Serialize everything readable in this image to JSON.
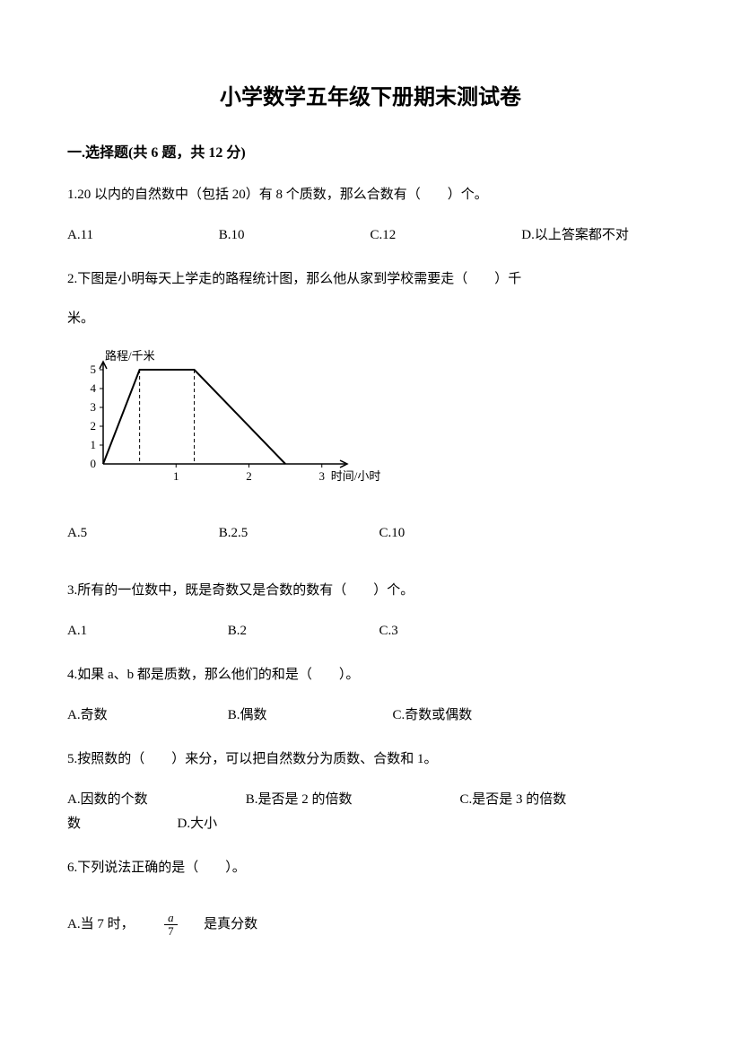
{
  "title": "小学数学五年级下册期末测试卷",
  "section1": {
    "header": "一.选择题(共 6 题，共 12 分)"
  },
  "q1": {
    "text": "1.20 以内的自然数中（包括 20）有 8 个质数，那么合数有（　　）个。",
    "optA": "A.11",
    "optB": "B.10",
    "optC": "C.12",
    "optD": "D.以上答案都不对"
  },
  "q2": {
    "text": "2.下图是小明每天上学走的路程统计图，那么他从家到学校需要走（　　）千",
    "suffix": "米。",
    "optA": "A.5",
    "optB": "B.2.5",
    "optC": "C.10"
  },
  "q3": {
    "text": "3.所有的一位数中，既是奇数又是合数的数有（　　）个。",
    "optA": "A.1",
    "optB": "B.2",
    "optC": "C.3"
  },
  "q4": {
    "text": "4.如果 a、b 都是质数，那么他们的和是（　　）。",
    "optA": "A.奇数",
    "optB": "B.偶数",
    "optC": "C.奇数或偶数"
  },
  "q5": {
    "text": "5.按照数的（　　）来分，可以把自然数分为质数、合数和 1。",
    "optA": "A.因数的个数",
    "optB": "B.是否是 2 的倍数",
    "optC": "C.是否是 3 的倍数",
    "optD": "D.大小"
  },
  "q6": {
    "text": "6.下列说法正确的是（　　）。",
    "optA_prefix": "A.当 7 时，",
    "optA_num": "a",
    "optA_den": "7",
    "optA_suffix": "是真分数"
  },
  "chart": {
    "y_label": "路程/千米",
    "x_label": "时间/小时",
    "y_ticks": [
      "0",
      "1",
      "2",
      "3",
      "4",
      "5"
    ],
    "x_ticks": [
      "1",
      "2",
      "3"
    ],
    "axis_color": "#000000",
    "line_color": "#000000",
    "dash_color": "#000000",
    "points": [
      {
        "x": 0,
        "y": 0
      },
      {
        "x": 0.5,
        "y": 5
      },
      {
        "x": 1.25,
        "y": 5
      },
      {
        "x": 2.5,
        "y": 0
      }
    ],
    "dash_x": [
      0.5,
      1.25
    ],
    "y_max": 5,
    "x_max": 3.2
  }
}
